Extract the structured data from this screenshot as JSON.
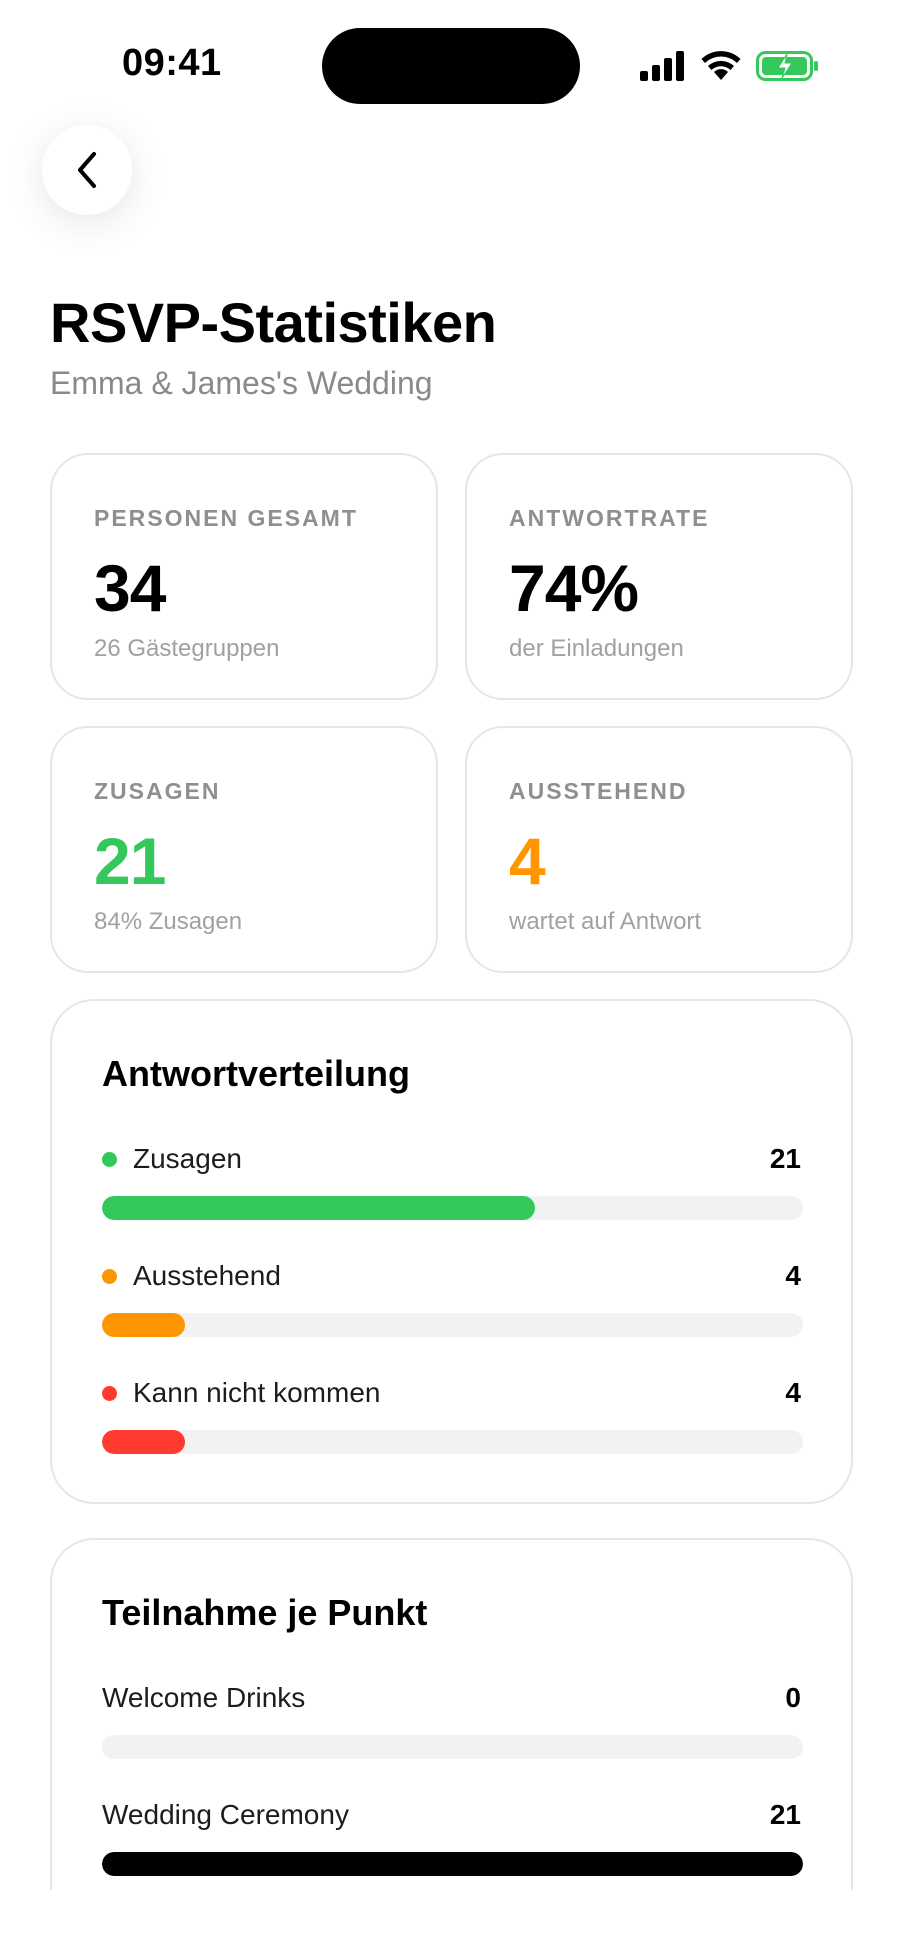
{
  "status_bar": {
    "time": "09:41"
  },
  "header": {
    "title": "RSVP-Statistiken",
    "subtitle": "Emma & James's Wedding"
  },
  "stats": {
    "total": {
      "label": "PERSONEN GESAMT",
      "value": "34",
      "sub": "26 Gästegruppen"
    },
    "rate": {
      "label": "ANTWORTRATE",
      "value": "74%",
      "sub": "der Einladungen"
    },
    "accepted": {
      "label": "ZUSAGEN",
      "value": "21",
      "sub": "84% Zusagen"
    },
    "pending": {
      "label": "AUSSTEHEND",
      "value": "4",
      "sub": "wartet auf Antwort"
    }
  },
  "colors": {
    "green": "#34c759",
    "orange": "#ff9500",
    "red": "#ff3b30",
    "black": "#000000",
    "track": "#f2f2f4"
  },
  "distribution": {
    "title": "Antwortverteilung",
    "rows": [
      {
        "label": "Zusagen",
        "count": "21",
        "fraction": 0.618,
        "color": "#34c759"
      },
      {
        "label": "Ausstehend",
        "count": "4",
        "fraction": 0.118,
        "color": "#ff9500"
      },
      {
        "label": "Kann nicht kommen",
        "count": "4",
        "fraction": 0.118,
        "color": "#ff3b30"
      }
    ]
  },
  "participation": {
    "title": "Teilnahme je Punkt",
    "rows": [
      {
        "label": "Welcome Drinks",
        "count": "0",
        "fraction": 0,
        "color": "#000000"
      },
      {
        "label": "Wedding Ceremony",
        "count": "21",
        "fraction": 1,
        "color": "#000000"
      }
    ]
  }
}
